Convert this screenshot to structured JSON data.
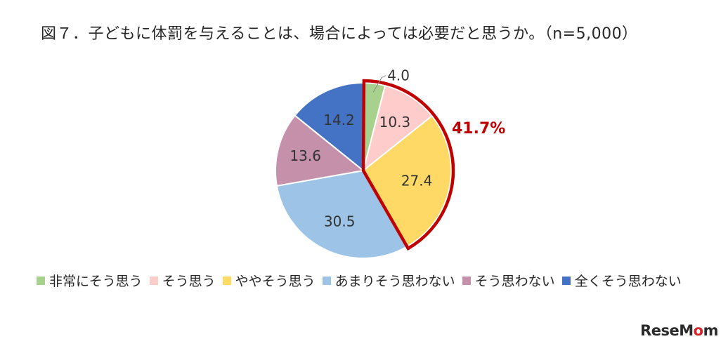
{
  "chart_data": {
    "type": "pie",
    "title": "図７．子どもに体罰を与えることは、場合によっては必要だと思うか。（n=5,000）",
    "categories": [
      "非常にそう思う",
      "そう思う",
      "ややそう思う",
      "あまりそう思わない",
      "そう思わない",
      "全くそう思わない"
    ],
    "values": [
      4.0,
      10.3,
      27.4,
      30.5,
      13.6,
      14.2
    ],
    "value_labels": [
      "4.0",
      "10.3",
      "27.4",
      "30.5",
      "13.6",
      "14.2"
    ],
    "colors": [
      "#a9d18e",
      "#ffcccc",
      "#ffd966",
      "#9dc3e6",
      "#c490aa",
      "#4472c4"
    ],
    "highlight": {
      "label": "41.7%",
      "slices": [
        0,
        1,
        2
      ],
      "color": "#c00000"
    },
    "legend_position": "bottom",
    "start_angle_deg": 0,
    "direction": "clockwise"
  },
  "logo_text": "ReseMom"
}
